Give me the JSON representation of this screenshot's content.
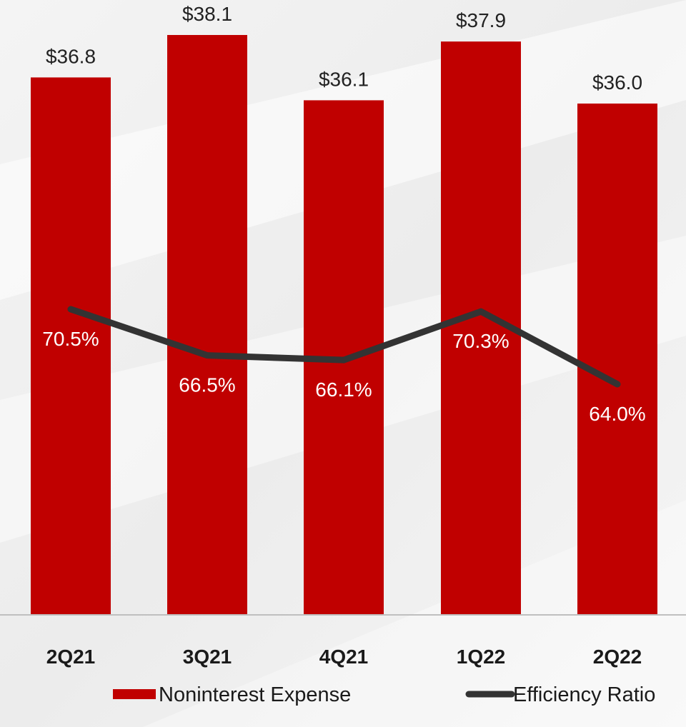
{
  "chart_data": {
    "type": "bar",
    "categories": [
      "2Q21",
      "3Q21",
      "4Q21",
      "1Q22",
      "2Q22"
    ],
    "series": [
      {
        "name": "Noninterest Expense",
        "type": "bar",
        "values": [
          36.8,
          38.1,
          36.1,
          37.9,
          36.0
        ],
        "labels": [
          "$36.8",
          "$38.1",
          "$36.1",
          "$37.9",
          "$36.0"
        ],
        "color": "#c00000"
      },
      {
        "name": "Efficiency Ratio",
        "type": "line",
        "values": [
          70.5,
          66.5,
          66.1,
          70.3,
          64.0
        ],
        "labels": [
          "70.5%",
          "66.5%",
          "66.1%",
          "70.3%",
          "64.0%"
        ],
        "color": "#333333"
      }
    ],
    "legend_position": "bottom",
    "grid": false,
    "background": "#ffffff"
  }
}
